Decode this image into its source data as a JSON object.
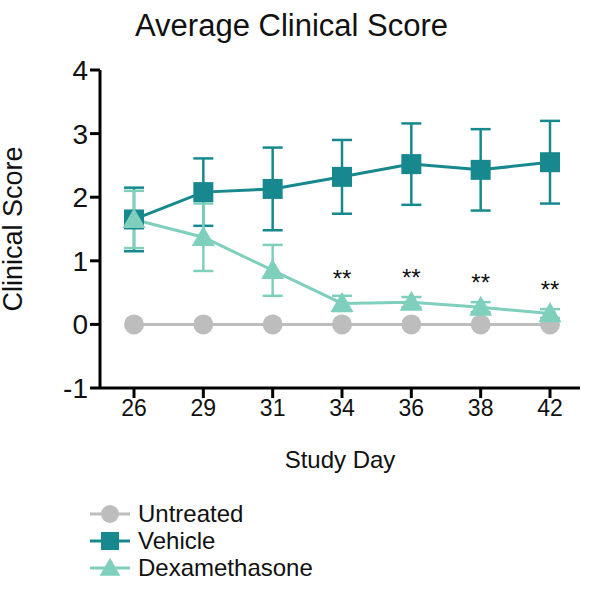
{
  "chart_data": {
    "type": "line",
    "title": "Average Clinical Score",
    "x_label": "Study Day",
    "y_label": "Clinical Score",
    "categories": [
      "26",
      "29",
      "31",
      "34",
      "36",
      "38",
      "42"
    ],
    "ylim": [
      -1,
      4
    ],
    "yticks": [
      -1,
      0,
      1,
      2,
      3,
      4
    ],
    "grid": false,
    "legend": "bottom left",
    "series": [
      {
        "name": "Untreated",
        "color": "#bdbdbd",
        "marker": "circle",
        "values": [
          0,
          0,
          0,
          0,
          0,
          0,
          0
        ]
      },
      {
        "name": "Vehicle",
        "color": "#17898e",
        "marker": "square",
        "values": [
          1.65,
          2.08,
          2.13,
          2.32,
          2.52,
          2.43,
          2.55
        ],
        "errors": [
          0.5,
          0.53,
          0.65,
          0.58,
          0.64,
          0.64,
          0.65
        ]
      },
      {
        "name": "Dexamethasone",
        "color": "#7fcfbd",
        "marker": "triangle",
        "values": [
          1.65,
          1.37,
          0.85,
          0.33,
          0.35,
          0.27,
          0.17
        ],
        "errors": [
          0.45,
          0.53,
          0.4,
          0.12,
          0.08,
          0.08,
          0.07
        ]
      }
    ],
    "annotations": [
      {
        "series": "Dexamethasone",
        "x": "34",
        "text": "**"
      },
      {
        "series": "Dexamethasone",
        "x": "36",
        "text": "**"
      },
      {
        "series": "Dexamethasone",
        "x": "38",
        "text": "**"
      },
      {
        "series": "Dexamethasone",
        "x": "42",
        "text": "**"
      }
    ]
  }
}
